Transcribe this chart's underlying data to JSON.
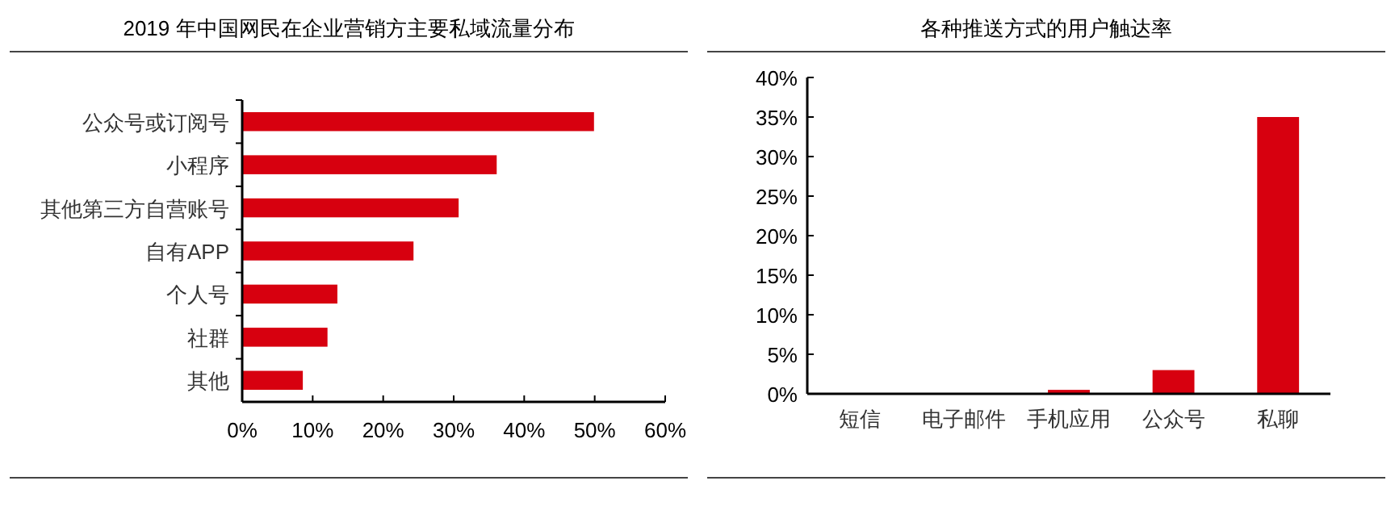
{
  "chart_data": [
    {
      "type": "bar",
      "title": "2019 年中国网民在企业营销方主要私域流量分布",
      "orientation": "horizontal",
      "categories": [
        "公众号或订阅号",
        "小程序",
        "其他第三方自营账号",
        "自有APP",
        "个人号",
        "社群",
        "其他"
      ],
      "series": [
        {
          "color": "#d7000f",
          "values": [
            49.9,
            36.1,
            30.7,
            24.3,
            13.5,
            12.1,
            8.6
          ]
        }
      ],
      "xlim": [
        0,
        60
      ],
      "xticks": [
        {
          "value": 0,
          "label": "0%"
        },
        {
          "value": 10,
          "label": "10%"
        },
        {
          "value": 20,
          "label": "20%"
        },
        {
          "value": 30,
          "label": "30%"
        },
        {
          "value": 40,
          "label": "40%"
        },
        {
          "value": 50,
          "label": "50%"
        },
        {
          "value": 60,
          "label": "60%"
        }
      ]
    },
    {
      "type": "bar",
      "title": "各种推送方式的用户触达率",
      "categories": [
        "短信",
        "电子邮件",
        "手机应用",
        "公众号",
        "私聊"
      ],
      "series": [
        {
          "color": "#d7000f",
          "values": [
            0,
            0.1,
            0.5,
            3.0,
            35.0
          ]
        }
      ],
      "ylim": [
        0,
        40
      ],
      "yticks": [
        {
          "value": 0,
          "label": "0%"
        },
        {
          "value": 5,
          "label": "5%"
        },
        {
          "value": 10,
          "label": "10%"
        },
        {
          "value": 15,
          "label": "15%"
        },
        {
          "value": 20,
          "label": "20%"
        },
        {
          "value": 25,
          "label": "25%"
        },
        {
          "value": 30,
          "label": "30%"
        },
        {
          "value": 35,
          "label": "35%"
        },
        {
          "value": 40,
          "label": "40%"
        }
      ]
    }
  ]
}
